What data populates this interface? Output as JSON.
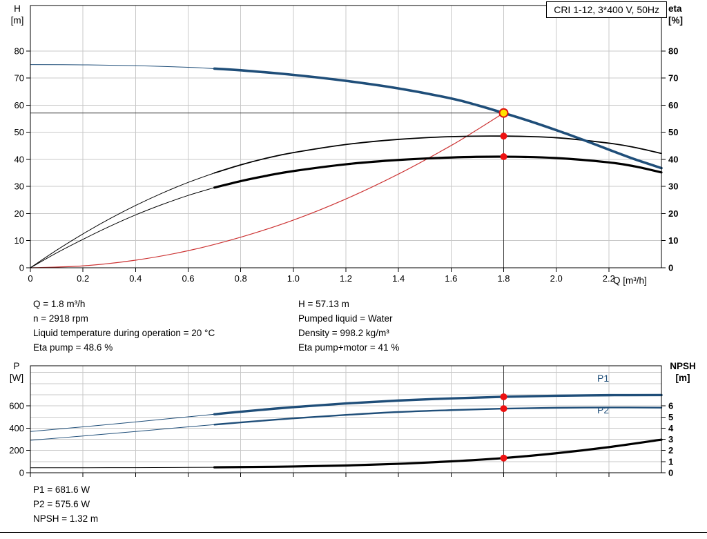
{
  "page": {
    "background": "#ffffff"
  },
  "colors": {
    "grid": "#c8c8c8",
    "frame": "#000000",
    "crosshair": "#3c3c3c",
    "curve_blue": "#1f4e79",
    "curve_black": "#000000",
    "curve_red": "#cc3333",
    "point_red": "#ee1111",
    "duty_fill": "#ffe300",
    "duty_stroke": "#dd1111",
    "label_blue": "#1f4e79"
  },
  "corner_labels": {
    "h": "H",
    "h_unit": "[m]",
    "eta": "eta",
    "eta_unit": "[%]",
    "q": "Q [m³/h]",
    "p": "P",
    "p_unit": "[W]",
    "npsh": "NPSH",
    "npsh_unit": "[m]"
  },
  "info_top": {
    "left": [
      "Q = 1.8 m³/h",
      "n = 2918 rpm",
      "Liquid temperature during operation = 20 °C",
      "Eta pump = 48.6 %"
    ],
    "right": [
      "H = 57.13 m",
      "Pumped liquid = Water",
      "Density = 998.2 kg/m³",
      "Eta pump+motor = 41 %"
    ]
  },
  "info_bottom": [
    "P1 = 681.6 W",
    "P2 = 575.6 W",
    "NPSH = 1.32 m"
  ],
  "chart_data": [
    {
      "id": "qh-eta-chart",
      "type": "line",
      "title": "CRI 1-12, 3*400 V, 50Hz",
      "x": {
        "label": "Q [m³/h]",
        "min": 0,
        "max": 2.4,
        "tick_values": [
          0,
          0.2,
          0.4,
          0.6,
          0.8,
          1,
          1.2,
          1.4,
          1.6,
          1.8,
          2,
          2.2
        ],
        "tick_labels": [
          "0",
          "0.2",
          "0.4",
          "0.6",
          "0.8",
          "1.0",
          "1.2",
          "1.4",
          "1.6",
          "1.8",
          "2.0",
          "2.2"
        ]
      },
      "y_left": {
        "label": "H [m]",
        "min": 0,
        "max": 96.8,
        "tick_values": [
          0,
          10,
          20,
          30,
          40,
          50,
          60,
          70,
          80
        ],
        "tick_labels": [
          "0",
          "10",
          "20",
          "30",
          "40",
          "50",
          "60",
          "70",
          "80"
        ],
        "bold": false
      },
      "y_right": {
        "label": "eta [%]",
        "min": 0,
        "max": 96.8,
        "tick_values": [
          0,
          10,
          20,
          30,
          40,
          50,
          60,
          70,
          80
        ],
        "tick_labels": [
          "0",
          "10",
          "20",
          "30",
          "40",
          "50",
          "60",
          "70",
          "80"
        ],
        "bold": true
      },
      "hgrid_axis": "left",
      "hgrid_values": [
        10,
        20,
        30,
        40,
        50,
        60,
        70,
        80
      ],
      "crosshair": {
        "q": 1.8,
        "value": 57.13
      },
      "series": [
        {
          "id": "system-curve",
          "name": "System curve",
          "axis": "left",
          "color": "#cc3333",
          "thin_width": 1.2,
          "thick_width": 1.2,
          "thick_from": null,
          "points": [
            [
              0,
              0
            ],
            [
              0.2,
              0.7
            ],
            [
              0.4,
              2.8
            ],
            [
              0.6,
              6.3
            ],
            [
              0.8,
              11.3
            ],
            [
              1,
              17.6
            ],
            [
              1.2,
              25.4
            ],
            [
              1.4,
              34.6
            ],
            [
              1.6,
              45.1
            ],
            [
              1.7,
              51
            ],
            [
              1.8,
              57.13
            ]
          ]
        },
        {
          "id": "eta-pump-curve",
          "name": "Eta pump",
          "axis": "right",
          "color": "#000000",
          "thin_width": 1,
          "thick_width": 1.8,
          "thick_from": 0.7,
          "points": [
            [
              0,
              0
            ],
            [
              0.1,
              6.5
            ],
            [
              0.2,
              12.5
            ],
            [
              0.3,
              18
            ],
            [
              0.4,
              23
            ],
            [
              0.5,
              27.5
            ],
            [
              0.6,
              31.5
            ],
            [
              0.7,
              35
            ],
            [
              0.8,
              38
            ],
            [
              0.9,
              40.5
            ],
            [
              1,
              42.5
            ],
            [
              1.2,
              45.5
            ],
            [
              1.4,
              47.4
            ],
            [
              1.6,
              48.4
            ],
            [
              1.8,
              48.6
            ],
            [
              2,
              48
            ],
            [
              2.2,
              46
            ],
            [
              2.3,
              44.4
            ],
            [
              2.4,
              42.2
            ]
          ]
        },
        {
          "id": "eta-pump-motor-curve",
          "name": "Eta pump+motor",
          "axis": "right",
          "color": "#000000",
          "thin_width": 1,
          "thick_width": 3.2,
          "thick_from": 0.7,
          "points": [
            [
              0,
              0
            ],
            [
              0.1,
              5.5
            ],
            [
              0.2,
              10.5
            ],
            [
              0.3,
              15.2
            ],
            [
              0.4,
              19.5
            ],
            [
              0.5,
              23.3
            ],
            [
              0.6,
              26.7
            ],
            [
              0.7,
              29.6
            ],
            [
              0.8,
              32
            ],
            [
              0.9,
              34
            ],
            [
              1,
              35.7
            ],
            [
              1.2,
              38.2
            ],
            [
              1.4,
              39.8
            ],
            [
              1.6,
              40.7
            ],
            [
              1.8,
              41
            ],
            [
              2,
              40.5
            ],
            [
              2.2,
              38.9
            ],
            [
              2.3,
              37.4
            ],
            [
              2.4,
              35.2
            ]
          ]
        },
        {
          "id": "qh-curve",
          "name": "H",
          "axis": "left",
          "color": "#1f4e79",
          "thin_width": 1,
          "thick_width": 3.6,
          "thick_from": 0.7,
          "points": [
            [
              0,
              75
            ],
            [
              0.2,
              74.9
            ],
            [
              0.4,
              74.6
            ],
            [
              0.6,
              74
            ],
            [
              0.7,
              73.5
            ],
            [
              0.8,
              72.9
            ],
            [
              1,
              71.2
            ],
            [
              1.2,
              69
            ],
            [
              1.4,
              66.2
            ],
            [
              1.6,
              62.5
            ],
            [
              1.7,
              60
            ],
            [
              1.8,
              57.13
            ],
            [
              1.9,
              54.1
            ],
            [
              2,
              50.8
            ],
            [
              2.1,
              47.3
            ],
            [
              2.2,
              43.6
            ],
            [
              2.3,
              40
            ],
            [
              2.4,
              36.8
            ]
          ]
        }
      ],
      "markers": [
        {
          "name": "eta-pump-point",
          "q": 1.8,
          "value": 48.6,
          "axis": "right",
          "r": 5,
          "fill": "#ee1111",
          "interactable": false
        },
        {
          "name": "eta-pump-motor-point",
          "q": 1.8,
          "value": 41,
          "axis": "right",
          "r": 5,
          "fill": "#ee1111",
          "interactable": false
        },
        {
          "name": "duty-point",
          "q": 1.8,
          "value": 57.13,
          "axis": "left",
          "r": 6,
          "fill": "#ffe300",
          "stroke": "#dd1111",
          "stroke_width": 2,
          "interactable": true
        }
      ]
    },
    {
      "id": "power-npsh-chart",
      "type": "line",
      "title": "",
      "x": {
        "label": "",
        "min": 0,
        "max": 2.4,
        "tick_values": [
          0,
          0.2,
          0.4,
          0.6,
          0.8,
          1,
          1.2,
          1.4,
          1.6,
          1.8,
          2,
          2.2
        ],
        "tick_labels": []
      },
      "y_left": {
        "label": "P [W]",
        "min": 0,
        "max": 960,
        "tick_values": [
          0,
          200,
          400,
          600
        ],
        "tick_labels": [
          "0",
          "200",
          "400",
          "600"
        ],
        "bold": false
      },
      "y_right": {
        "label": "NPSH [m]",
        "min": 0,
        "max": 9.6,
        "tick_values": [
          0,
          1,
          2,
          3,
          4,
          5,
          6
        ],
        "tick_labels": [
          "0",
          "1",
          "2",
          "3",
          "4",
          "5",
          "6"
        ],
        "bold": true
      },
      "hgrid_axis": "right",
      "hgrid_values": [
        1,
        2,
        3,
        4,
        5,
        6,
        7,
        8,
        9
      ],
      "crosshair": {
        "q": 1.8
      },
      "series": [
        {
          "id": "p1-curve",
          "name": "P1",
          "axis": "left",
          "color": "#1f4e79",
          "thin_width": 1,
          "thick_width": 3.4,
          "thick_from": 0.7,
          "points": [
            [
              0,
              370
            ],
            [
              0.2,
              412
            ],
            [
              0.4,
              456
            ],
            [
              0.6,
              502
            ],
            [
              0.7,
              525
            ],
            [
              0.8,
              548
            ],
            [
              1,
              589
            ],
            [
              1.2,
              622
            ],
            [
              1.4,
              648
            ],
            [
              1.6,
              667
            ],
            [
              1.8,
              681.6
            ],
            [
              2,
              691
            ],
            [
              2.2,
              696
            ],
            [
              2.4,
              697
            ]
          ]
        },
        {
          "id": "p2-curve",
          "name": "P2",
          "axis": "left",
          "color": "#1f4e79",
          "thin_width": 1,
          "thick_width": 2.4,
          "thick_from": 0.7,
          "points": [
            [
              0,
              291
            ],
            [
              0.2,
              330
            ],
            [
              0.4,
              370
            ],
            [
              0.6,
              412
            ],
            [
              0.7,
              432
            ],
            [
              0.8,
              452
            ],
            [
              1,
              488
            ],
            [
              1.2,
              519
            ],
            [
              1.4,
              545
            ],
            [
              1.6,
              562
            ],
            [
              1.8,
              575.6
            ],
            [
              2,
              583
            ],
            [
              2.2,
              586
            ],
            [
              2.4,
              584
            ]
          ]
        },
        {
          "id": "npsh-curve",
          "name": "NPSH",
          "axis": "right",
          "color": "#000000",
          "thin_width": 1,
          "thick_width": 3.2,
          "thick_from": 0.7,
          "points": [
            [
              0,
              0.45
            ],
            [
              0.2,
              0.45
            ],
            [
              0.4,
              0.46
            ],
            [
              0.6,
              0.48
            ],
            [
              0.7,
              0.49
            ],
            [
              0.8,
              0.51
            ],
            [
              1,
              0.56
            ],
            [
              1.2,
              0.65
            ],
            [
              1.4,
              0.8
            ],
            [
              1.6,
              1.02
            ],
            [
              1.8,
              1.32
            ],
            [
              2,
              1.75
            ],
            [
              2.2,
              2.3
            ],
            [
              2.4,
              2.97
            ]
          ]
        }
      ],
      "markers": [
        {
          "name": "p1-point",
          "q": 1.8,
          "value": 681.6,
          "axis": "left",
          "r": 5,
          "fill": "#ee1111",
          "interactable": false
        },
        {
          "name": "p2-point",
          "q": 1.8,
          "value": 575.6,
          "axis": "left",
          "r": 5,
          "fill": "#ee1111",
          "interactable": false
        },
        {
          "name": "npsh-point",
          "q": 1.8,
          "value": 1.32,
          "axis": "right",
          "r": 5,
          "fill": "#ee1111",
          "interactable": false
        }
      ]
    }
  ]
}
